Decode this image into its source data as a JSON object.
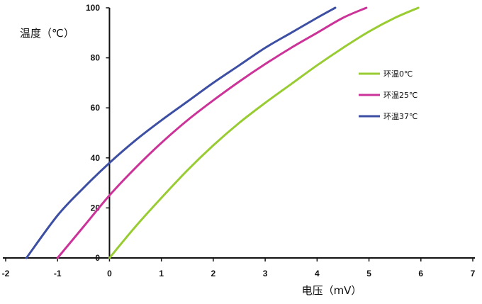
{
  "chart_data": {
    "type": "line",
    "title": "",
    "xlabel": "电压（mV）",
    "ylabel": "温度（℃）",
    "xlim": [
      -2,
      7
    ],
    "ylim": [
      0,
      100
    ],
    "x_ticks": [
      "-2",
      "-1",
      "0",
      "1",
      "2",
      "3",
      "4",
      "5",
      "6",
      "7"
    ],
    "y_ticks": [
      "0",
      "20",
      "40",
      "60",
      "80",
      "100"
    ],
    "grid": false,
    "legend_position": "right",
    "series": [
      {
        "name": "环温0℃",
        "color": "#99cc33",
        "points": [
          [
            0,
            0
          ],
          [
            0.5,
            12.5
          ],
          [
            1,
            24
          ],
          [
            1.5,
            35
          ],
          [
            2,
            45
          ],
          [
            2.5,
            54
          ],
          [
            3,
            62
          ],
          [
            3.5,
            69.5
          ],
          [
            4,
            77
          ],
          [
            4.5,
            84
          ],
          [
            5,
            90.5
          ],
          [
            5.5,
            96
          ],
          [
            5.95,
            100
          ]
        ]
      },
      {
        "name": "环温25℃",
        "color": "#cc3399",
        "points": [
          [
            -1.0,
            0
          ],
          [
            -0.5,
            12.5
          ],
          [
            0,
            25
          ],
          [
            0.5,
            36
          ],
          [
            1,
            46
          ],
          [
            1.5,
            55
          ],
          [
            2,
            63
          ],
          [
            2.5,
            70.5
          ],
          [
            3,
            77.5
          ],
          [
            3.5,
            84
          ],
          [
            4,
            90
          ],
          [
            4.5,
            96
          ],
          [
            4.95,
            100
          ]
        ]
      },
      {
        "name": "环温37℃",
        "color": "#3d4fa3",
        "points": [
          [
            -1.6,
            0
          ],
          [
            -1.0,
            17
          ],
          [
            -0.5,
            28
          ],
          [
            0,
            38
          ],
          [
            0.5,
            47
          ],
          [
            1,
            55
          ],
          [
            1.5,
            62.5
          ],
          [
            2,
            70
          ],
          [
            2.5,
            77
          ],
          [
            3,
            84
          ],
          [
            3.5,
            90
          ],
          [
            4,
            96
          ],
          [
            4.35,
            100
          ]
        ]
      }
    ]
  }
}
